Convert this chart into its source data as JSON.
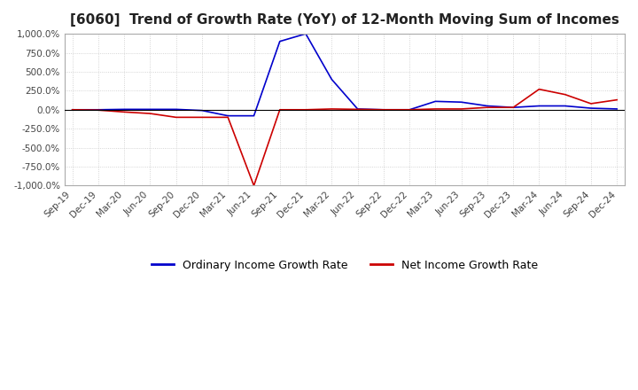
{
  "title": "[6060]  Trend of Growth Rate (YoY) of 12-Month Moving Sum of Incomes",
  "title_fontsize": 11,
  "background_color": "#ffffff",
  "plot_bg_color": "#ffffff",
  "grid_color": "#c8c8c8",
  "grid_style": "dotted",
  "ylim": [
    -1000,
    1000
  ],
  "yticks": [
    -1000,
    -750,
    -500,
    -250,
    0,
    250,
    500,
    750,
    1000
  ],
  "ordinary_color": "#0000cc",
  "net_color": "#cc0000",
  "legend_labels": [
    "Ordinary Income Growth Rate",
    "Net Income Growth Rate"
  ],
  "x_labels": [
    "Sep-19",
    "Dec-19",
    "Mar-20",
    "Jun-20",
    "Sep-20",
    "Dec-20",
    "Mar-21",
    "Jun-21",
    "Sep-21",
    "Dec-21",
    "Mar-22",
    "Jun-22",
    "Sep-22",
    "Dec-22",
    "Mar-23",
    "Jun-23",
    "Sep-23",
    "Dec-23",
    "Mar-24",
    "Jun-24",
    "Sep-24",
    "Dec-24"
  ],
  "ordinary_income_growth": [
    0,
    0,
    5,
    5,
    5,
    -10,
    -80,
    -80,
    900,
    1000,
    400,
    10,
    0,
    0,
    110,
    100,
    50,
    30,
    50,
    50,
    20,
    10
  ],
  "net_income_growth": [
    0,
    -5,
    -30,
    -50,
    -100,
    -100,
    -100,
    -1000,
    0,
    0,
    10,
    5,
    0,
    0,
    10,
    10,
    30,
    30,
    270,
    200,
    80,
    130
  ]
}
